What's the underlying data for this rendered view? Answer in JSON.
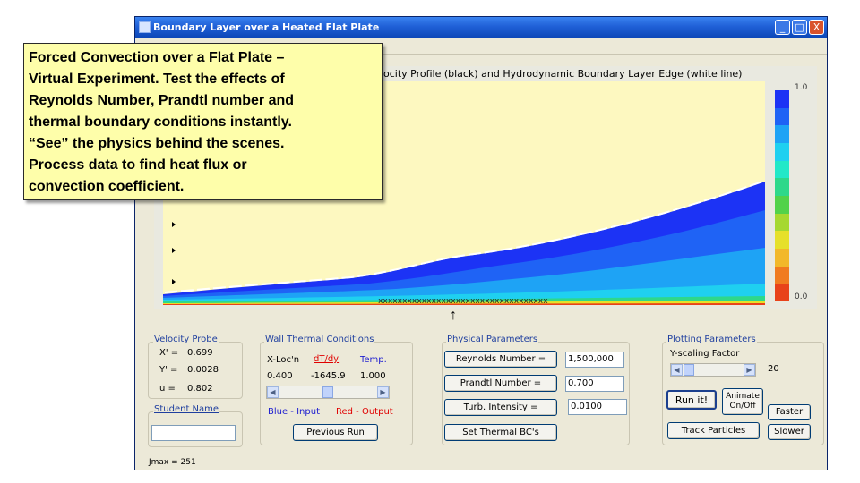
{
  "window": {
    "title": "Boundary Layer over a Heated Flat Plate",
    "controls": [
      "_",
      "□",
      "X"
    ]
  },
  "plot": {
    "header": "ocity Profile (black) and Hydrodynamic Boundary Layer Edge (white line)",
    "colorbar_top": "1.0",
    "colorbar_bottom": "0.0",
    "colorbar_colors": [
      "#1c33f5",
      "#1f63f5",
      "#1ea3f5",
      "#1fd0f0",
      "#22e8c8",
      "#2ed88a",
      "#52d24a",
      "#a6d830",
      "#e6e02a",
      "#f2b82a",
      "#f07b20",
      "#e8421a"
    ],
    "arrow": "↑"
  },
  "callout": {
    "text": "Forced Convection over a Flat Plate –\nVirtual Experiment.   Test the effects of\nReynolds Number, Prandtl number and\nthermal boundary conditions instantly.\n“See” the physics behind the scenes.\nProcess data to find heat flux or\nconvection coefficient."
  },
  "velocity_probe": {
    "title": "Velocity Probe",
    "x_label": "X' =",
    "x_value": "0.699",
    "y_label": "Y' =",
    "y_value": "0.0028",
    "u_label": "u =",
    "u_value": "0.802"
  },
  "student": {
    "title": "Student Name",
    "name_value": ""
  },
  "jmax": "Jmax = 251",
  "wall_thermal": {
    "title": "Wall Thermal Conditions",
    "col1": "X-Loc'n",
    "col2": "dT/dy",
    "col3": "Temp.",
    "v1": "0.400",
    "v2": "-1645.9",
    "v3": "1.000",
    "blue_input": "Blue - Input",
    "red_output": "Red - Output",
    "previous_run": "Previous Run"
  },
  "physical": {
    "title": "Physical Parameters",
    "reynolds_label": "Reynolds Number =",
    "reynolds_value": "1,500,000",
    "prandtl_label": "Prandtl Number =",
    "prandtl_value": "0.700",
    "turb_label": "Turb. Intensity =",
    "turb_value": "0.0100",
    "set_thermal": "Set Thermal BC's"
  },
  "plotting": {
    "title": "Plotting Parameters",
    "yscale_label": "Y-scaling Factor",
    "yscale_value": "20",
    "run": "Run it!",
    "animate": "Animate\nOn/Off",
    "faster": "Faster",
    "slower": "Slower",
    "track": "Track Particles"
  }
}
